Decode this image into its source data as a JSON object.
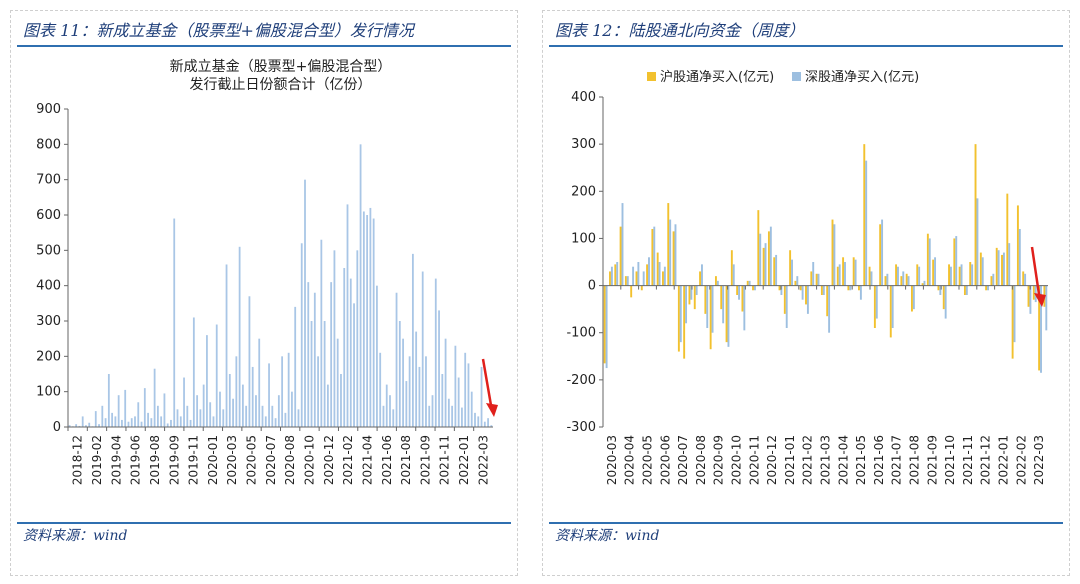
{
  "left": {
    "caption": "图表 11：新成立基金（股票型+偏股混合型）发行情况",
    "source": "资料来源：wind",
    "chart_data": {
      "type": "bar",
      "title": "新成立基金（股票型+偏股混合型）",
      "subtitle": "发行截止日份额合计（亿份）",
      "ylim": [
        0,
        900
      ],
      "yticks": [
        0,
        100,
        200,
        300,
        400,
        500,
        600,
        700,
        800,
        900
      ],
      "xticklabels": [
        "2018-12",
        "2019-02",
        "2019-04",
        "2019-06",
        "2019-08",
        "2019-09",
        "2019-11",
        "2020-01",
        "2020-03",
        "2020-05",
        "2020-07",
        "2020-08",
        "2020-10",
        "2020-12",
        "2021-02",
        "2021-04",
        "2021-06",
        "2021-08",
        "2021-09",
        "2021-11",
        "2022-01",
        "2022-03"
      ],
      "series": [
        {
          "color": "#a9c6e6",
          "values": [
            5,
            2,
            8,
            3,
            30,
            5,
            12,
            2,
            45,
            8,
            60,
            25,
            150,
            40,
            30,
            90,
            20,
            105,
            15,
            25,
            30,
            70,
            15,
            110,
            40,
            25,
            165,
            60,
            30,
            95,
            10,
            20,
            590,
            50,
            30,
            140,
            60,
            20,
            310,
            90,
            50,
            120,
            260,
            70,
            30,
            290,
            100,
            50,
            460,
            150,
            80,
            200,
            510,
            120,
            60,
            370,
            170,
            90,
            250,
            60,
            30,
            180,
            60,
            25,
            90,
            200,
            40,
            210,
            100,
            340,
            50,
            520,
            700,
            410,
            300,
            380,
            200,
            530,
            300,
            120,
            410,
            500,
            250,
            150,
            450,
            630,
            420,
            350,
            500,
            800,
            610,
            600,
            620,
            590,
            400,
            210,
            60,
            120,
            90,
            50,
            380,
            300,
            250,
            130,
            200,
            490,
            270,
            170,
            440,
            200,
            60,
            90,
            420,
            330,
            150,
            250,
            80,
            60,
            230,
            140,
            55,
            210,
            180,
            100,
            40,
            30,
            170,
            15,
            25,
            5
          ]
        }
      ]
    }
  },
  "right": {
    "caption": "图表 12：陆股通北向资金（周度）",
    "source": "资料来源：wind",
    "chart_data": {
      "type": "bar",
      "ylim": [
        -300,
        400
      ],
      "yticks": [
        -300,
        -200,
        -100,
        0,
        100,
        200,
        300,
        400
      ],
      "xticklabels": [
        "2020-03",
        "2020-04",
        "2020-05",
        "2020-06",
        "2020-07",
        "2020-08",
        "2020-09",
        "2020-10",
        "2020-11",
        "2020-12",
        "2021-01",
        "2021-02",
        "2021-03",
        "2021-04",
        "2021-05",
        "2021-06",
        "2021-07",
        "2021-08",
        "2021-09",
        "2021-10",
        "2021-11",
        "2021-12",
        "2022-01",
        "2022-02",
        "2022-03"
      ],
      "series": [
        {
          "name": "沪股通净买入(亿元)",
          "color": "#f2c12e",
          "values": [
            -165,
            30,
            45,
            125,
            20,
            -25,
            30,
            -10,
            45,
            120,
            70,
            30,
            175,
            115,
            -140,
            -155,
            -40,
            -50,
            30,
            -60,
            -135,
            20,
            -50,
            -120,
            75,
            -20,
            -55,
            10,
            -10,
            160,
            80,
            115,
            60,
            -10,
            -60,
            75,
            10,
            -10,
            -40,
            30,
            25,
            -20,
            -65,
            140,
            40,
            60,
            -10,
            60,
            -10,
            300,
            40,
            -90,
            130,
            20,
            -110,
            45,
            20,
            25,
            -55,
            45,
            5,
            110,
            55,
            -10,
            -50,
            45,
            100,
            40,
            -20,
            50,
            300,
            70,
            -10,
            20,
            80,
            65,
            195,
            -155,
            170,
            30,
            -45,
            -30,
            -180,
            -45
          ]
        },
        {
          "name": "深股通净买入(亿元)",
          "color": "#9dbfe0",
          "values": [
            -175,
            40,
            50,
            175,
            20,
            40,
            50,
            30,
            60,
            125,
            50,
            40,
            140,
            130,
            -120,
            -80,
            -30,
            -20,
            45,
            -90,
            -100,
            10,
            -80,
            -130,
            45,
            -30,
            -95,
            10,
            -10,
            110,
            90,
            125,
            65,
            -20,
            -90,
            55,
            20,
            -30,
            -60,
            50,
            25,
            -20,
            -100,
            130,
            45,
            50,
            -10,
            55,
            -30,
            265,
            30,
            -70,
            140,
            25,
            -90,
            40,
            30,
            20,
            -50,
            40,
            10,
            100,
            60,
            -20,
            -70,
            40,
            105,
            45,
            -20,
            45,
            185,
            60,
            -10,
            25,
            75,
            70,
            90,
            -120,
            120,
            25,
            -60,
            -35,
            -185,
            -95
          ]
        }
      ]
    }
  }
}
